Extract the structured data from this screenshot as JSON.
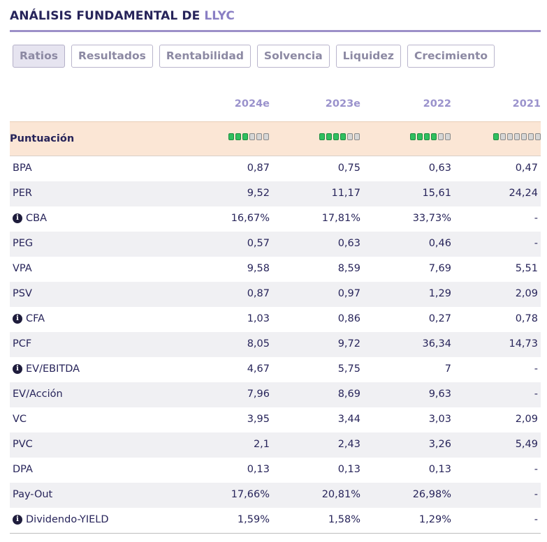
{
  "header": {
    "title_prefix": "ANÁLISIS FUNDAMENTAL DE",
    "ticker": "LLYC"
  },
  "tabs": [
    {
      "label": "Ratios",
      "active": true
    },
    {
      "label": "Resultados",
      "active": false
    },
    {
      "label": "Rentabilidad",
      "active": false
    },
    {
      "label": "Solvencia",
      "active": false
    },
    {
      "label": "Liquidez",
      "active": false
    },
    {
      "label": "Crecimiento",
      "active": false
    }
  ],
  "years": [
    "2024e",
    "2023e",
    "2022",
    "2021"
  ],
  "score": {
    "label": "Puntuación",
    "values": [
      {
        "filled": 3,
        "total": 6
      },
      {
        "filled": 4,
        "total": 6
      },
      {
        "filled": 4,
        "total": 6
      },
      {
        "filled": 1,
        "total": 7
      }
    ]
  },
  "rows": [
    {
      "label": "BPA",
      "info": false,
      "values": [
        "0,87",
        "0,75",
        "0,63",
        "0,47"
      ]
    },
    {
      "label": "PER",
      "info": false,
      "values": [
        "9,52",
        "11,17",
        "15,61",
        "24,24"
      ]
    },
    {
      "label": "CBA",
      "info": true,
      "values": [
        "16,67%",
        "17,81%",
        "33,73%",
        "-"
      ]
    },
    {
      "label": "PEG",
      "info": false,
      "values": [
        "0,57",
        "0,63",
        "0,46",
        "-"
      ]
    },
    {
      "label": "VPA",
      "info": false,
      "values": [
        "9,58",
        "8,59",
        "7,69",
        "5,51"
      ]
    },
    {
      "label": "PSV",
      "info": false,
      "values": [
        "0,87",
        "0,97",
        "1,29",
        "2,09"
      ]
    },
    {
      "label": "CFA",
      "info": true,
      "values": [
        "1,03",
        "0,86",
        "0,27",
        "0,78"
      ]
    },
    {
      "label": "PCF",
      "info": false,
      "values": [
        "8,05",
        "9,72",
        "36,34",
        "14,73"
      ]
    },
    {
      "label": "EV/EBITDA",
      "info": true,
      "values": [
        "4,67",
        "5,75",
        "7",
        "-"
      ]
    },
    {
      "label": "EV/Acción",
      "info": false,
      "values": [
        "7,96",
        "8,69",
        "9,63",
        "-"
      ]
    },
    {
      "label": "VC",
      "info": false,
      "values": [
        "3,95",
        "3,44",
        "3,03",
        "2,09"
      ]
    },
    {
      "label": "PVC",
      "info": false,
      "values": [
        "2,1",
        "2,43",
        "3,26",
        "5,49"
      ]
    },
    {
      "label": "DPA",
      "info": false,
      "values": [
        "0,13",
        "0,13",
        "0,13",
        "-"
      ]
    },
    {
      "label": "Pay-Out",
      "info": false,
      "values": [
        "17,66%",
        "20,81%",
        "26,98%",
        "-"
      ]
    },
    {
      "label": "Dividendo-YIELD",
      "info": true,
      "values": [
        "1,59%",
        "1,58%",
        "1,29%",
        "-"
      ]
    }
  ],
  "info_icon_glyph": "i"
}
